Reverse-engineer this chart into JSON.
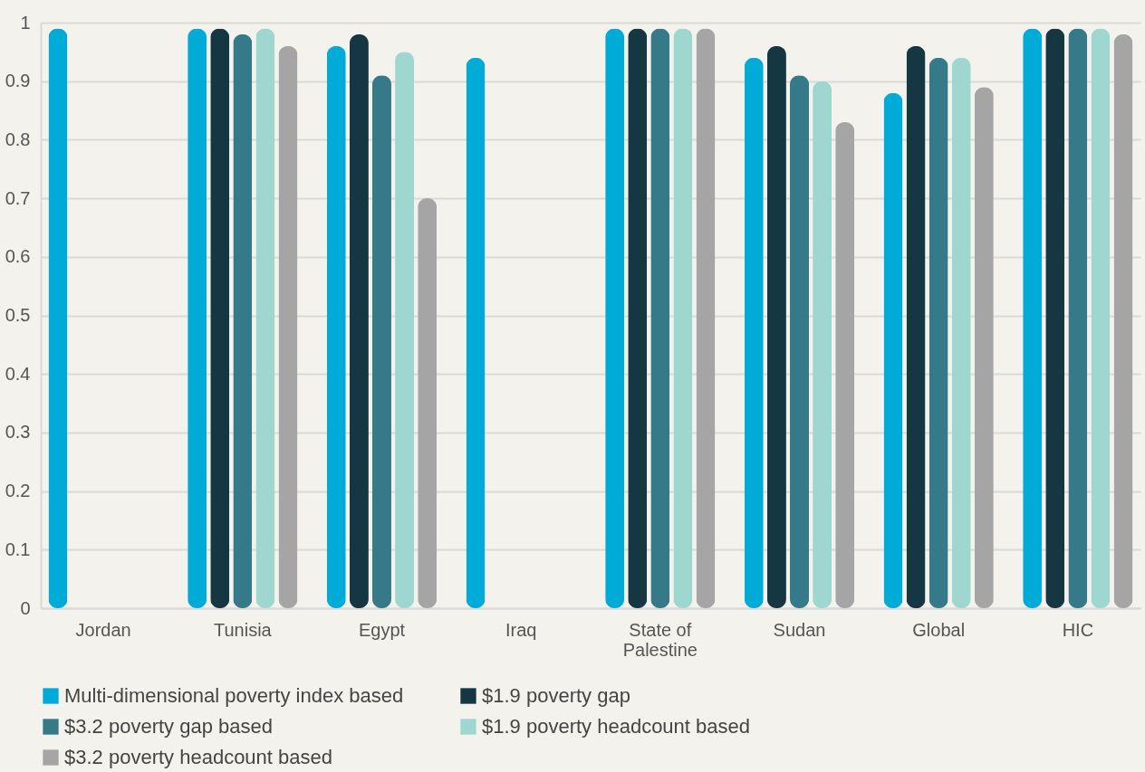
{
  "chart_data": {
    "type": "bar",
    "categories": [
      "Jordan",
      "Tunisia",
      "Egypt",
      "Iraq",
      "State of Palestine",
      "Sudan",
      "Global",
      "HIC"
    ],
    "series": [
      {
        "name": "Multi-dimensional poverty index based",
        "color": "#00acd7",
        "values": [
          0.99,
          0.99,
          0.96,
          0.94,
          0.99,
          0.94,
          0.88,
          0.99
        ]
      },
      {
        "name": "$1.9 poverty gap",
        "color": "#153742",
        "values": [
          null,
          0.99,
          0.98,
          null,
          0.99,
          0.96,
          0.96,
          0.99
        ]
      },
      {
        "name": "$3.2 poverty gap based",
        "color": "#367a8a",
        "values": [
          null,
          0.98,
          0.91,
          null,
          0.99,
          0.91,
          0.94,
          0.99
        ]
      },
      {
        "name": "$1.9 poverty headcount based",
        "color": "#9dd7cf",
        "values": [
          null,
          0.99,
          0.95,
          null,
          0.99,
          0.9,
          0.94,
          0.99
        ]
      },
      {
        "name": "$3.2 poverty headcount based",
        "color": "#a5a5a5",
        "values": [
          null,
          0.96,
          0.7,
          null,
          0.99,
          0.83,
          0.89,
          0.98
        ]
      }
    ],
    "ylim": [
      0,
      1
    ],
    "yticks": [
      0,
      0.1,
      0.2,
      0.3,
      0.4,
      0.5,
      0.6,
      0.7,
      0.8,
      0.9,
      1
    ],
    "grid": "y",
    "legend": "bottom"
  }
}
